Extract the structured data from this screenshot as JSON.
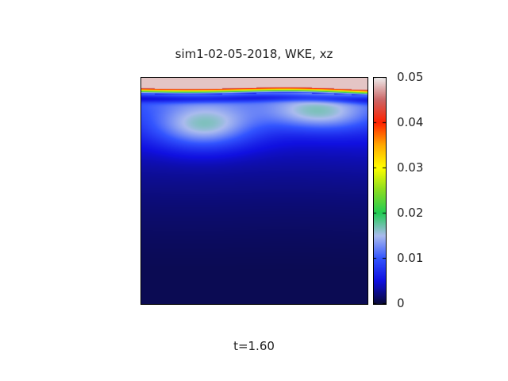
{
  "figure": {
    "title": "sim1-02-05-2018, WKE, xz",
    "time_label": "t=1.60"
  },
  "chart_data": {
    "type": "heatmap",
    "title": "sim1-02-05-2018, WKE, xz",
    "subtitle": "t=1.60",
    "xlabel": "",
    "ylabel": "",
    "colorbar": {
      "min": 0,
      "max": 0.05,
      "ticks": [
        0,
        0.01,
        0.02,
        0.03,
        0.04,
        0.05
      ],
      "tick_labels": [
        "0",
        "0.01",
        "0.02",
        "0.03",
        "0.04",
        "0.05"
      ],
      "colormap": [
        [
          0.0,
          "#0a0a3a"
        ],
        [
          0.1,
          "#1010e0"
        ],
        [
          0.2,
          "#3355ff"
        ],
        [
          0.3,
          "#aabbee"
        ],
        [
          0.4,
          "#22cc55"
        ],
        [
          0.5,
          "#88dd22"
        ],
        [
          0.6,
          "#ffff00"
        ],
        [
          0.7,
          "#ffaa00"
        ],
        [
          0.8,
          "#ff2200"
        ],
        [
          0.9,
          "#cc6666"
        ],
        [
          1.0,
          "#eeeeee"
        ]
      ]
    },
    "field_description": {
      "background_value": 0.0003,
      "surface_bands": [
        {
          "feature": "interface",
          "value_range": [
            0.04,
            0.05
          ]
        },
        {
          "feature": "blue_glow_peak",
          "value": 0.008
        }
      ],
      "grid": false,
      "legend_position": "right"
    }
  }
}
